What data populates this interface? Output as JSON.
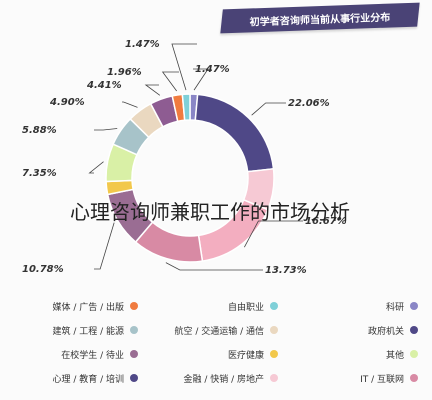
{
  "title": "初学者咨询师当前从事行业分布",
  "overlay_caption": "心理咨询师兼职工作的市场分析",
  "chart_data": {
    "type": "pie",
    "donut": true,
    "title": "初学者咨询师当前从事行业分布",
    "slices": [
      {
        "label": "科研",
        "value": 1.47,
        "display": "1.47%",
        "color": "#8a86c6"
      },
      {
        "label": "政府机关",
        "value": 22.06,
        "display": "22.06%",
        "color": "#4f4887"
      },
      {
        "label": "其他",
        "value": 8.0,
        "display": "",
        "color": "#f6c9d4"
      },
      {
        "label": "IT / 互联网",
        "value": 16.67,
        "display": "16.67%",
        "color": "#f3aec0"
      },
      {
        "label": "金融 / 快销 / 房地产",
        "value": 13.73,
        "display": "13.73%",
        "color": "#d88aa4"
      },
      {
        "label": "心理 / 教育 / 培训",
        "value": 10.78,
        "display": "10.78%",
        "color": "#9a6d93"
      },
      {
        "label": "医疗健康",
        "value": 2.5,
        "display": "",
        "color": "#f2c84b"
      },
      {
        "label": "在校学生 / 待业",
        "value": 7.35,
        "display": "7.35%",
        "color": "#d9f0a6"
      },
      {
        "label": "建筑 / 工程 / 能源",
        "value": 5.88,
        "display": "5.88%",
        "color": "#a7c3c9"
      },
      {
        "label": "航空 / 交通运输 / 通信",
        "value": 4.9,
        "display": "4.90%",
        "color": "#ead8c0"
      },
      {
        "label": "在校学生",
        "value": 4.41,
        "display": "4.41%",
        "color": "#8e5c92"
      },
      {
        "label": "媒体 / 广告 / 出版",
        "value": 1.96,
        "display": "1.96%",
        "color": "#f07b3f"
      },
      {
        "label": "自由职业",
        "value": 1.47,
        "display": "1.47%",
        "color": "#7fd0d8"
      }
    ]
  },
  "legend": [
    {
      "label": "媒体 / 广告 / 出版",
      "color": "#f07b3f"
    },
    {
      "label": "自由职业",
      "color": "#7fd0d8"
    },
    {
      "label": "科研",
      "color": "#8a86c6"
    },
    {
      "label": "建筑 / 工程 / 能源",
      "color": "#a7c3c9"
    },
    {
      "label": "航空 / 交通运输 / 通信",
      "color": "#ead8c0"
    },
    {
      "label": "政府机关",
      "color": "#4f4887"
    },
    {
      "label": "在校学生 / 待业",
      "color": "#9a6d93"
    },
    {
      "label": "医疗健康",
      "color": "#f2c84b"
    },
    {
      "label": "其他",
      "color": "#d9f0a6"
    },
    {
      "label": "心理 / 教育 / 培训",
      "color": "#4f4887"
    },
    {
      "label": "金融 / 快销 / 房地产",
      "color": "#f6c9d4"
    },
    {
      "label": "IT / 互联网",
      "color": "#d88aa4"
    }
  ]
}
